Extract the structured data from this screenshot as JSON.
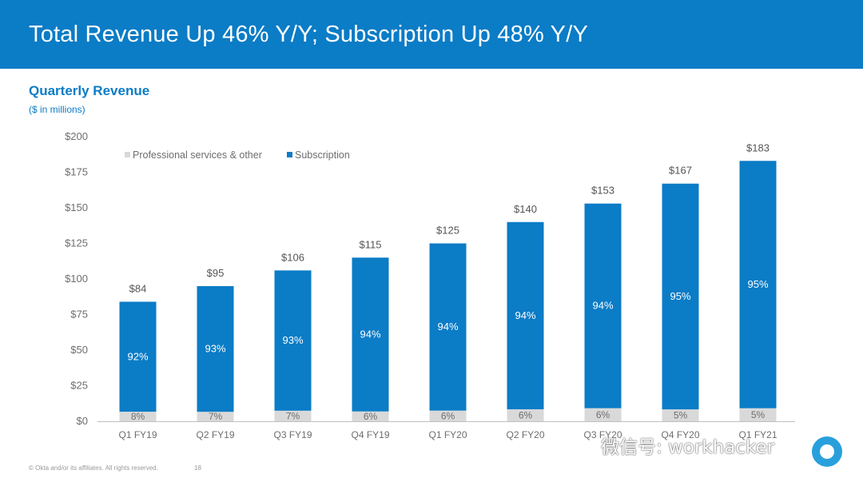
{
  "header": {
    "title": "Total Revenue Up 46% Y/Y; Subscription Up 48% Y/Y"
  },
  "subtitle": "Quarterly Revenue",
  "units": "($ in millions)",
  "colors": {
    "header_bg": "#0B7CC6",
    "subscription": "#0B7CC6",
    "professional": "#D9D9D9",
    "axis_text": "#6e6e6e"
  },
  "chart_data": {
    "type": "bar",
    "stacked": true,
    "title": "Quarterly Revenue",
    "ylabel": "($ in millions)",
    "ylim": [
      0,
      200
    ],
    "y_ticks": [
      "$0",
      "$25",
      "$50",
      "$75",
      "$100",
      "$125",
      "$150",
      "$175",
      "$200"
    ],
    "y_tick_values": [
      0,
      25,
      50,
      75,
      100,
      125,
      150,
      175,
      200
    ],
    "categories": [
      "Q1 FY19",
      "Q2 FY19",
      "Q3 FY19",
      "Q4 FY19",
      "Q1 FY20",
      "Q2 FY20",
      "Q3 FY20",
      "Q4 FY20",
      "Q1 FY21"
    ],
    "totals": [
      84,
      95,
      106,
      115,
      125,
      140,
      153,
      167,
      183
    ],
    "total_labels": [
      "$84",
      "$95",
      "$106",
      "$115",
      "$125",
      "$140",
      "$153",
      "$167",
      "$183"
    ],
    "series": [
      {
        "name": "Professional services & other",
        "color": "#D9D9D9",
        "percent_labels": [
          "8%",
          "7%",
          "7%",
          "6%",
          "6%",
          "6%",
          "6%",
          "5%",
          "5%"
        ]
      },
      {
        "name": "Subscription",
        "color": "#0B7CC6",
        "percent_labels": [
          "92%",
          "93%",
          "93%",
          "94%",
          "94%",
          "94%",
          "94%",
          "95%",
          "95%"
        ]
      }
    ],
    "legend_position": "top-left"
  },
  "footer": {
    "copyright": "© Okta and/or its affiliates. All rights reserved.",
    "page": "18"
  },
  "watermark": {
    "text": "微信号: workhacker"
  }
}
